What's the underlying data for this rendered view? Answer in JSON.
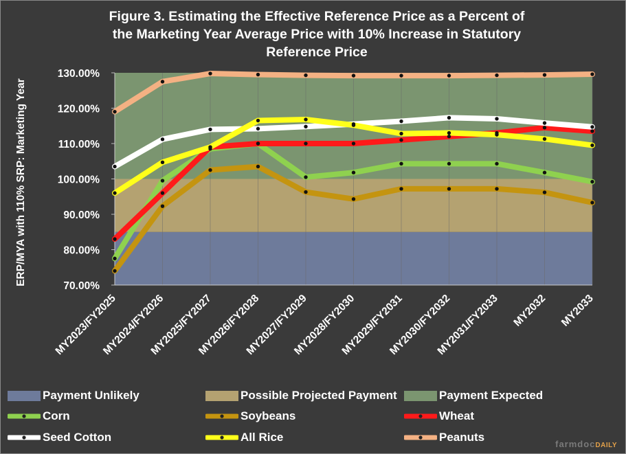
{
  "title_lines": [
    "Figure 3. Estimating the Effective Reference Price as a Percent of",
    "the Marketing Year Average Price with 10% Increase in Statutory",
    "Reference Price"
  ],
  "brand": {
    "farmdoc": "farmdoc",
    "daily": "DAILY"
  },
  "chart_data": {
    "type": "line",
    "title": "Figure 3. Estimating the Effective Reference Price as a Percent of the Marketing Year Average Price with 10% Increase in Statutory Reference Price",
    "xlabel": "",
    "ylabel": "ERP/MYA with 110% SRP: Marketing Year",
    "ylim": [
      70,
      130
    ],
    "yticks": [
      70,
      80,
      90,
      100,
      110,
      120,
      130
    ],
    "ytick_labels": [
      "70.00%",
      "80.00%",
      "90.00%",
      "100.00%",
      "110.00%",
      "120.00%",
      "130.00%"
    ],
    "categories": [
      "MY2023/FY2025",
      "MY2024/FY2026",
      "MY2025/FY2027",
      "MY2026/FY2028",
      "MY2027/FY2029",
      "MY2028/FY2030",
      "MY2029/FY2031",
      "MY2030/FY2032",
      "MY2031/FY2033",
      "MY2032",
      "MY2033"
    ],
    "bands": [
      {
        "name": "Payment Unlikely",
        "from": 70,
        "to": 85,
        "color": "#6e7b9b"
      },
      {
        "name": "Possible Projected Payment",
        "from": 85,
        "to": 100,
        "color": "#b4a271"
      },
      {
        "name": "Payment Expected",
        "from": 100,
        "to": 130,
        "color": "#7b9570"
      }
    ],
    "series": [
      {
        "name": "Corn",
        "color": "#8fd14f",
        "values": [
          77.5,
          99.5,
          108.5,
          110.0,
          100.5,
          101.8,
          104.3,
          104.3,
          104.3,
          101.8,
          99.2
        ]
      },
      {
        "name": "Soybeans",
        "color": "#c49410",
        "values": [
          74.0,
          92.3,
          102.5,
          103.5,
          96.3,
          94.3,
          97.2,
          97.2,
          97.2,
          96.2,
          93.3
        ]
      },
      {
        "name": "Wheat",
        "color": "#ff1a1a",
        "values": [
          83.0,
          96.0,
          109.0,
          110.0,
          110.0,
          110.0,
          111.0,
          112.0,
          113.0,
          114.5,
          113.5
        ]
      },
      {
        "name": "Seed Cotton",
        "color": "#ffffff",
        "values": [
          103.5,
          111.2,
          114.0,
          114.2,
          114.8,
          115.5,
          116.3,
          117.3,
          117.0,
          115.8,
          114.7
        ]
      },
      {
        "name": "All Rice",
        "color": "#ffff1a",
        "values": [
          96.0,
          104.7,
          109.0,
          116.5,
          116.8,
          115.2,
          112.8,
          113.0,
          112.5,
          111.3,
          109.5
        ]
      },
      {
        "name": "Peanuts",
        "color": "#f4b183",
        "values": [
          119.0,
          127.5,
          129.8,
          129.5,
          129.3,
          129.2,
          129.2,
          129.2,
          129.3,
          129.4,
          129.6
        ]
      }
    ]
  }
}
